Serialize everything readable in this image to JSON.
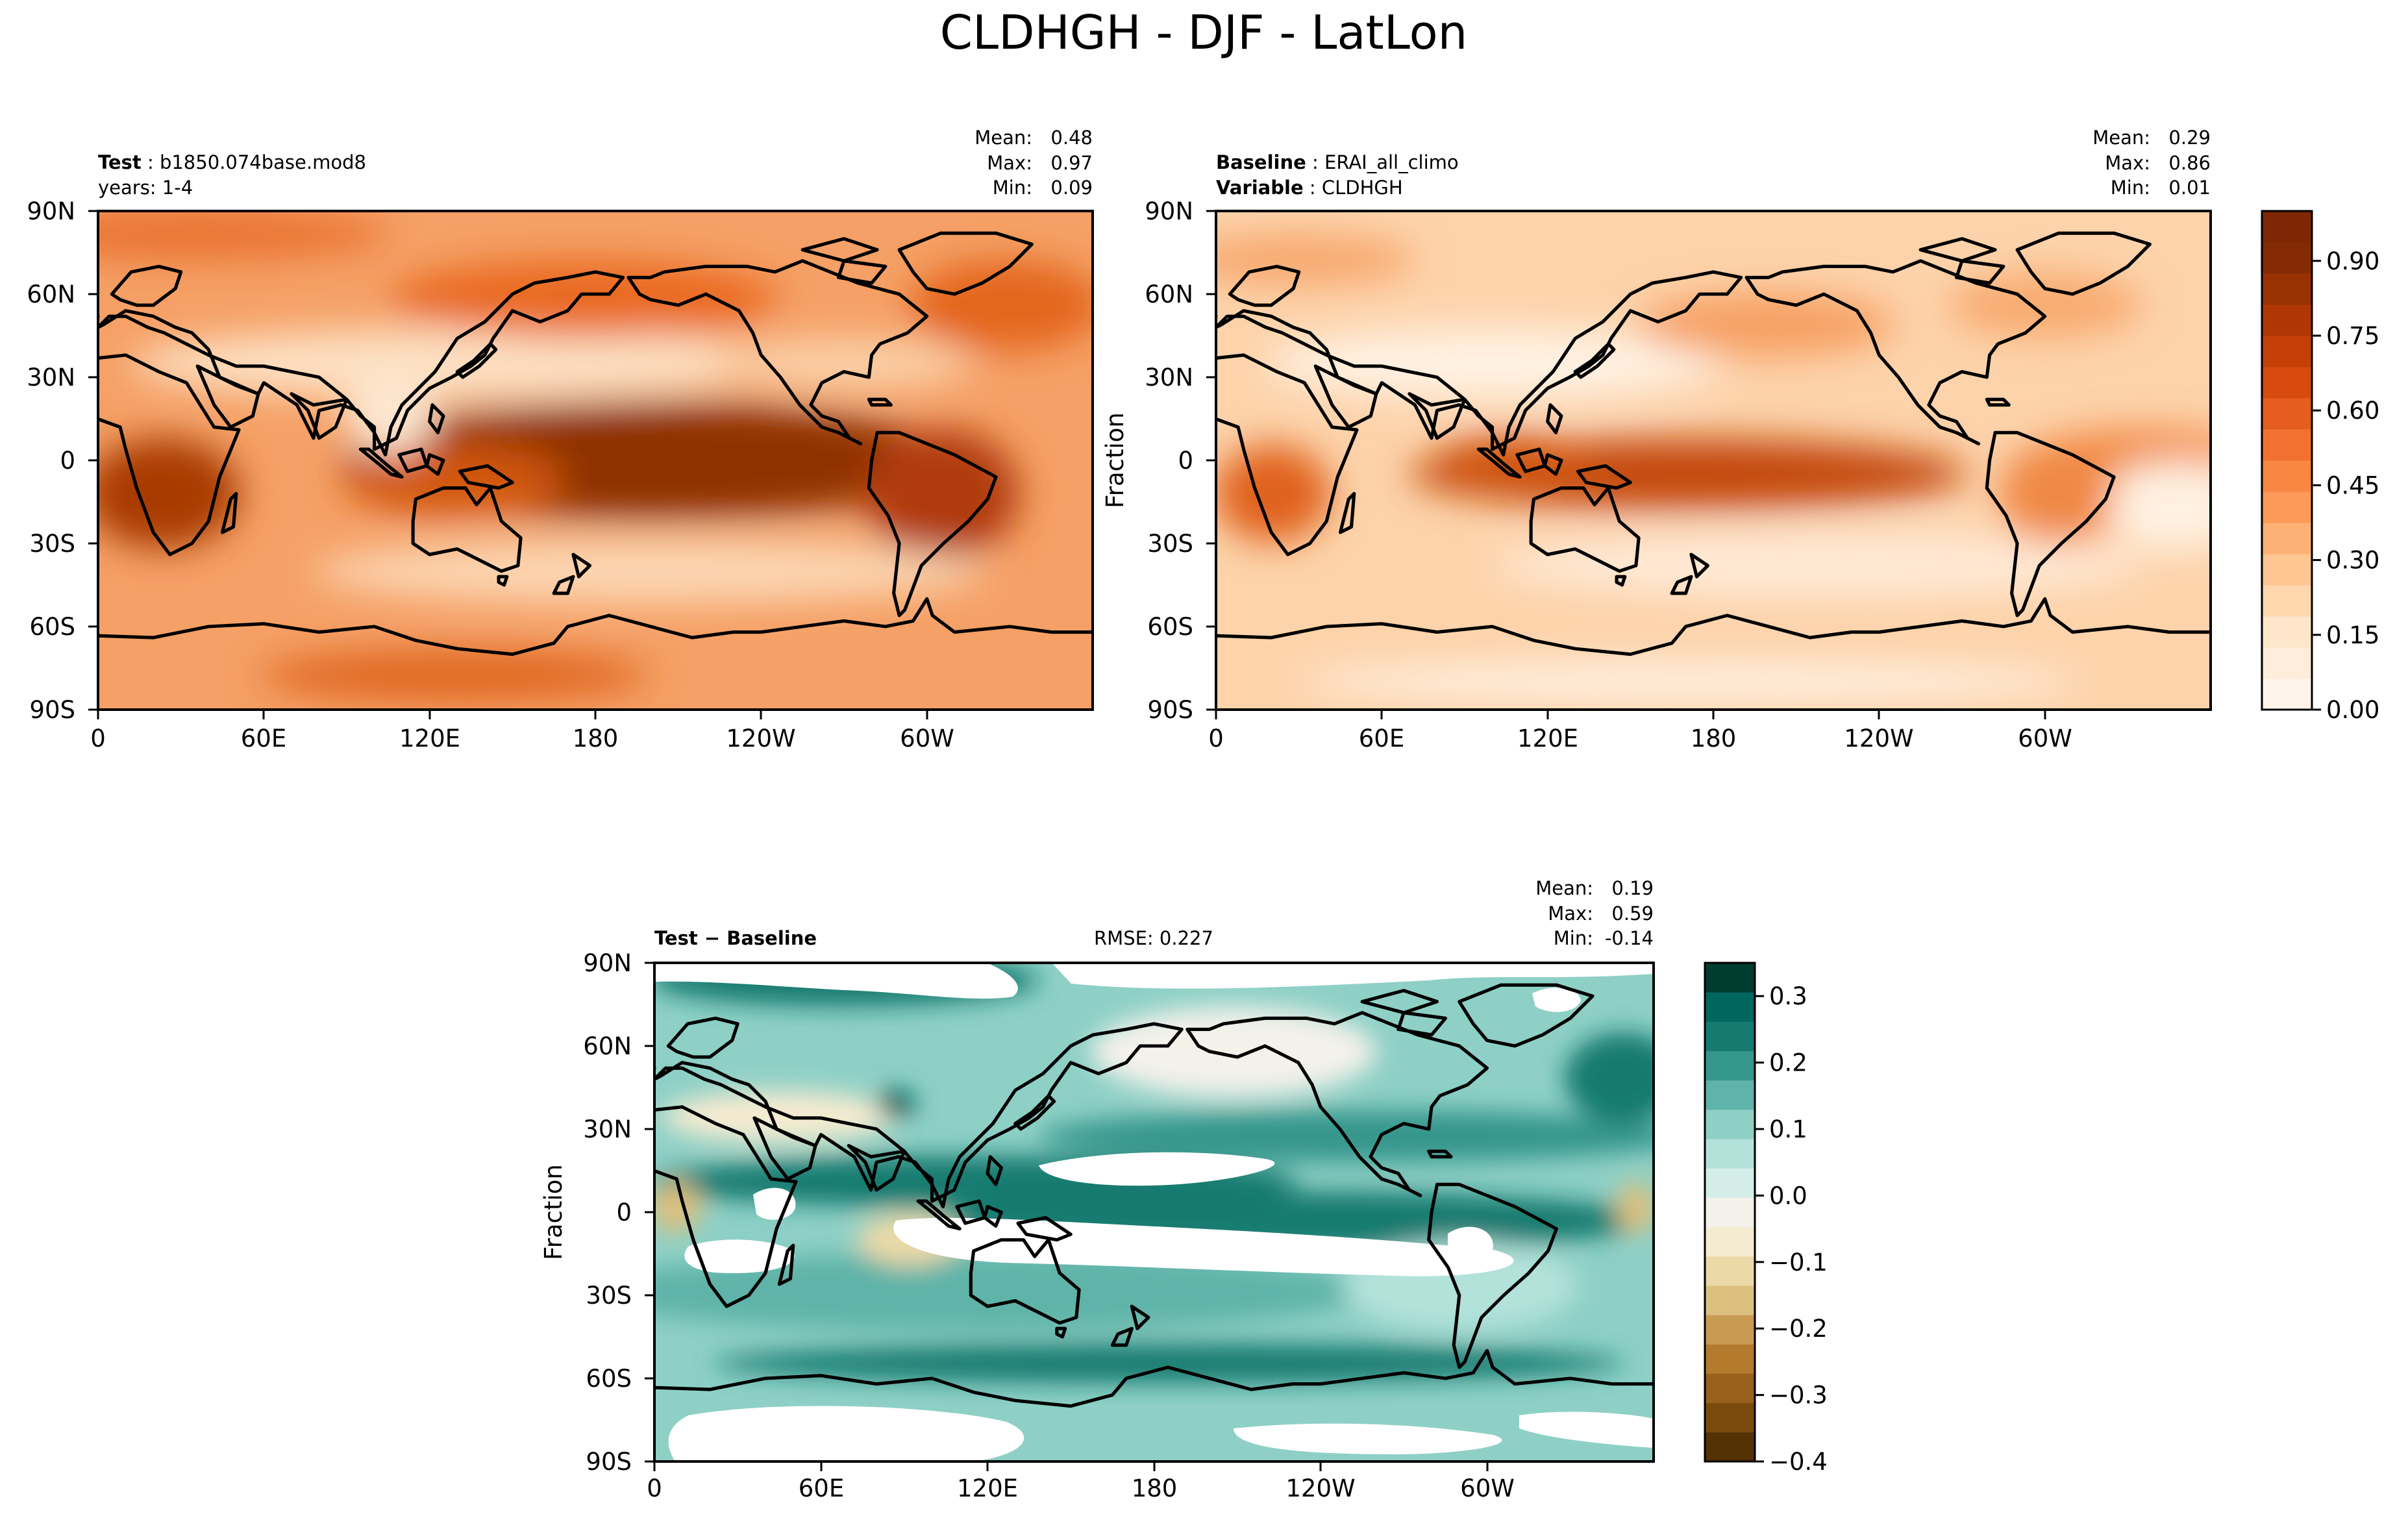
{
  "title": "CLDHGH - DJF - LatLon",
  "lat_ticks": [
    "90N",
    "60N",
    "30N",
    "0",
    "30S",
    "60S",
    "90S"
  ],
  "lon_ticks": [
    "0",
    "60E",
    "120E",
    "180",
    "120W",
    "60W"
  ],
  "panels": [
    {
      "id": "test",
      "label_bold": "Test",
      "label_value": "b1850.074base.mod8",
      "label2": "years: 1-4",
      "stats": {
        "mean_label": "Mean:",
        "mean": "0.48",
        "max_label": "Max:",
        "max": "0.97",
        "min_label": "Min:",
        "min": "0.09"
      }
    },
    {
      "id": "baseline",
      "label_bold": "Baseline",
      "label_value": "ERAI_all_climo",
      "label2_bold": "Variable",
      "label2_value": "CLDHGH",
      "ylabel": "Fraction",
      "stats": {
        "mean_label": "Mean:",
        "mean": "0.29",
        "max_label": "Max:",
        "max": "0.86",
        "min_label": "Min:",
        "min": "0.01"
      }
    },
    {
      "id": "diff",
      "label_bold": "Test − Baseline",
      "rmse": "RMSE: 0.227",
      "ylabel": "Fraction",
      "stats": {
        "mean_label": "Mean:",
        "mean": "0.19",
        "max_label": "Max:",
        "max": "0.59",
        "min_label": "Min:",
        "min": "-0.14"
      }
    }
  ],
  "colorbar_main": {
    "ticks": [
      "0.00",
      "0.15",
      "0.30",
      "0.45",
      "0.60",
      "0.75",
      "0.90"
    ],
    "values": [
      0.0,
      0.15,
      0.3,
      0.45,
      0.6,
      0.75,
      0.9
    ],
    "range": [
      0.0,
      1.0
    ],
    "colors": [
      "#fff5eb",
      "#feeddb",
      "#fee6cb",
      "#fdd7ad",
      "#fdc692",
      "#fdb175",
      "#fd9a5a",
      "#f98642",
      "#f27130",
      "#e65d20",
      "#d94a0f",
      "#c54006",
      "#b03704",
      "#9a3103",
      "#842a04",
      "#7f2704"
    ]
  },
  "colorbar_diff": {
    "ticks": [
      "0.3",
      "0.2",
      "0.1",
      "0.0",
      "−0.1",
      "−0.2",
      "−0.3",
      "−0.4"
    ],
    "values": [
      0.3,
      0.2,
      0.1,
      0.0,
      -0.1,
      -0.2,
      -0.3,
      -0.4
    ],
    "range": [
      -0.4,
      0.35
    ],
    "colors": [
      "#543005",
      "#7a4a0d",
      "#98601a",
      "#b47a2e",
      "#c99b52",
      "#dcc07f",
      "#ebd9a8",
      "#f5ebd0",
      "#f3f1ea",
      "#d5ede9",
      "#b3e2da",
      "#8ed0c6",
      "#5fb3a8",
      "#35968c",
      "#167a70",
      "#01665e",
      "#003c30"
    ]
  },
  "chart_data": [
    {
      "type": "heatmap",
      "title": "Test : b1850.074base.mod8",
      "stats": {
        "mean": 0.48,
        "max": 0.97,
        "min": 0.09
      },
      "xlim": [
        0,
        360
      ],
      "ylim": [
        -90,
        90
      ]
    },
    {
      "type": "heatmap",
      "title": "Baseline : ERAI_all_climo",
      "stats": {
        "mean": 0.29,
        "max": 0.86,
        "min": 0.01
      },
      "xlim": [
        0,
        360
      ],
      "ylim": [
        -90,
        90
      ]
    },
    {
      "type": "heatmap",
      "title": "Test − Baseline",
      "rmse": 0.227,
      "stats": {
        "mean": 0.19,
        "max": 0.59,
        "min": -0.14
      },
      "xlim": [
        0,
        360
      ],
      "ylim": [
        -90,
        90
      ]
    }
  ]
}
